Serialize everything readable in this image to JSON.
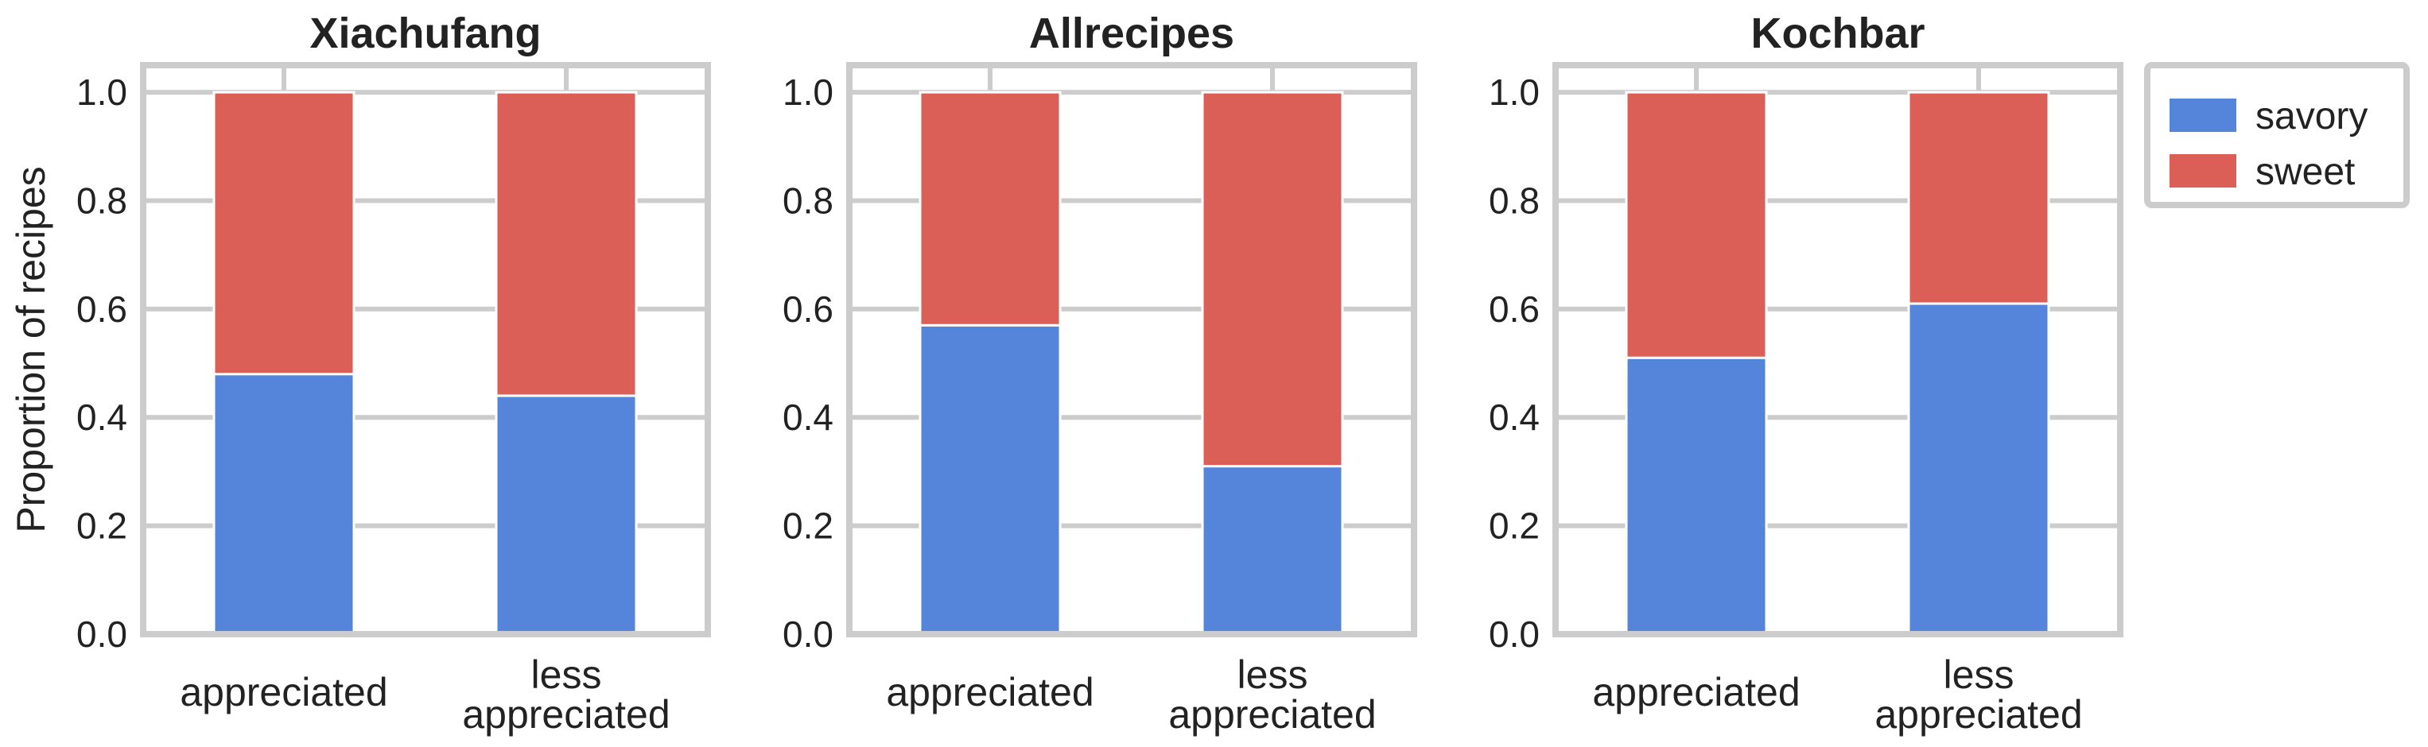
{
  "chart_data": [
    {
      "type": "bar",
      "stacked": true,
      "title": "Xiachufang",
      "categories": [
        [
          "appreciated"
        ],
        [
          "less",
          "appreciated"
        ]
      ],
      "series": [
        {
          "name": "savory",
          "values": [
            0.48,
            0.44
          ]
        },
        {
          "name": "sweet",
          "values": [
            0.52,
            0.56
          ]
        }
      ],
      "ylabel": "Proportion of recipes",
      "ylim": [
        0,
        1.05
      ],
      "yticks": [
        "0.0",
        "0.2",
        "0.4",
        "0.6",
        "0.8",
        "1.0"
      ],
      "grid": true
    },
    {
      "type": "bar",
      "stacked": true,
      "title": "Allrecipes",
      "categories": [
        [
          "appreciated"
        ],
        [
          "less",
          "appreciated"
        ]
      ],
      "series": [
        {
          "name": "savory",
          "values": [
            0.57,
            0.31
          ]
        },
        {
          "name": "sweet",
          "values": [
            0.43,
            0.69
          ]
        }
      ],
      "ylabel": "",
      "ylim": [
        0,
        1.05
      ],
      "yticks": [
        "0.0",
        "0.2",
        "0.4",
        "0.6",
        "0.8",
        "1.0"
      ],
      "grid": true
    },
    {
      "type": "bar",
      "stacked": true,
      "title": "Kochbar",
      "categories": [
        [
          "appreciated"
        ],
        [
          "less",
          "appreciated"
        ]
      ],
      "series": [
        {
          "name": "savory",
          "values": [
            0.51,
            0.61
          ]
        },
        {
          "name": "sweet",
          "values": [
            0.49,
            0.39
          ]
        }
      ],
      "ylabel": "",
      "ylim": [
        0,
        1.05
      ],
      "yticks": [
        "0.0",
        "0.2",
        "0.4",
        "0.6",
        "0.8",
        "1.0"
      ],
      "grid": true
    }
  ],
  "legend": {
    "placement": "right",
    "items": [
      {
        "label": "savory",
        "color": "#5584db"
      },
      {
        "label": "sweet",
        "color": "#db5e57"
      }
    ]
  },
  "colors": {
    "savory": "#5584db",
    "sweet": "#db5e57",
    "grid": "#cccccc",
    "frame": "#cccccc",
    "background": "#ffffff"
  }
}
